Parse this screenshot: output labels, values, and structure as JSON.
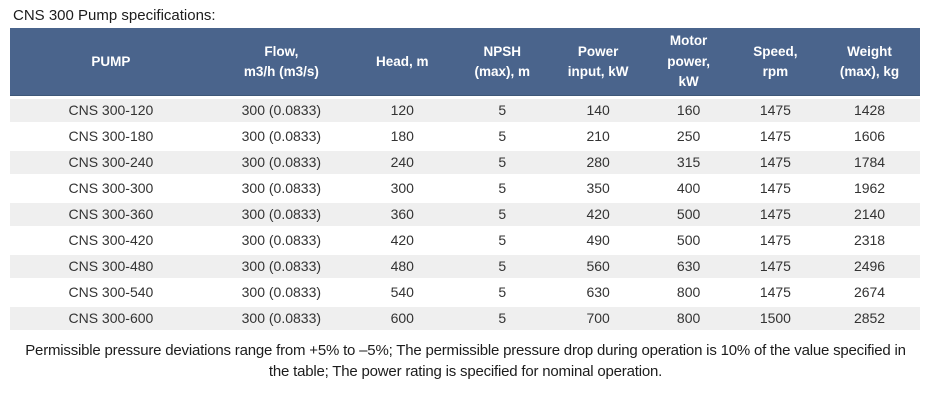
{
  "title": "CNS 300 Pump specifications:",
  "colors": {
    "header_bg": "#4a648c",
    "header_text": "#ffffff",
    "stripe": "#efefef",
    "text": "#333333"
  },
  "table": {
    "columns": [
      {
        "label": "PUMP"
      },
      {
        "label": "Flow,\nm3/h (m3/s)"
      },
      {
        "label": "Head, m"
      },
      {
        "label": "NPSH\n(max), m"
      },
      {
        "label": "Power\ninput, kW"
      },
      {
        "label": "Motor\npower,\nkW"
      },
      {
        "label": "Speed,\nrpm"
      },
      {
        "label": "Weight\n(max), kg"
      }
    ],
    "rows": [
      {
        "cells": [
          "CNS 300-120",
          "300 (0.0833)",
          "120",
          "5",
          "140",
          "160",
          "1475",
          "1428"
        ]
      },
      {
        "cells": [
          "CNS 300-180",
          "300 (0.0833)",
          "180",
          "5",
          "210",
          "250",
          "1475",
          "1606"
        ]
      },
      {
        "cells": [
          "CNS 300-240",
          "300 (0.0833)",
          "240",
          "5",
          "280",
          "315",
          "1475",
          "1784"
        ]
      },
      {
        "cells": [
          "CNS 300-300",
          "300 (0.0833)",
          "300",
          "5",
          "350",
          "400",
          "1475",
          "1962"
        ]
      },
      {
        "cells": [
          "CNS 300-360",
          "300 (0.0833)",
          "360",
          "5",
          "420",
          "500",
          "1475",
          "2140"
        ]
      },
      {
        "cells": [
          "CNS 300-420",
          "300 (0.0833)",
          "420",
          "5",
          "490",
          "500",
          "1475",
          "2318"
        ]
      },
      {
        "cells": [
          "CNS 300-480",
          "300 (0.0833)",
          "480",
          "5",
          "560",
          "630",
          "1475",
          "2496"
        ]
      },
      {
        "cells": [
          "CNS 300-540",
          "300 (0.0833)",
          "540",
          "5",
          "630",
          "800",
          "1475",
          "2674"
        ]
      },
      {
        "cells": [
          "CNS 300-600",
          "300 (0.0833)",
          "600",
          "5",
          "700",
          "800",
          "1500",
          "2852"
        ]
      }
    ]
  },
  "footnote": "Permissible pressure deviations range from +5% to –5%; The permissible pressure drop during operation is 10% of the value specified in the table; The power rating is specified for nominal operation."
}
